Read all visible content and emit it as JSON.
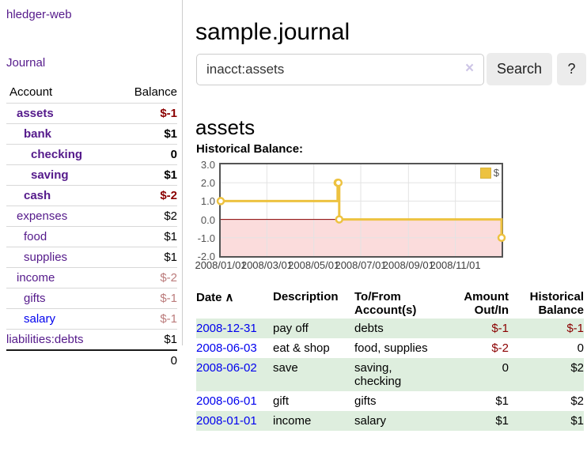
{
  "colors": {
    "accent_purple": "#551a8b",
    "link_blue": "#0000ee",
    "neg_strong": "#8b0000",
    "neg_soft": "#bb7b7b",
    "row_green": "#deeede",
    "series_gold": "#edc240"
  },
  "sidebar": {
    "brand": "hledger-web",
    "journal_link": "Journal",
    "accounts": {
      "header_account": "Account",
      "header_balance": "Balance",
      "rows": [
        {
          "name": "assets",
          "balance": "$-1"
        },
        {
          "name": "bank",
          "balance": "$1"
        },
        {
          "name": "checking",
          "balance": "0"
        },
        {
          "name": "saving",
          "balance": "$1"
        },
        {
          "name": "cash",
          "balance": "$-2"
        },
        {
          "name": "expenses",
          "balance": "$2"
        },
        {
          "name": "food",
          "balance": "$1"
        },
        {
          "name": "supplies",
          "balance": "$1"
        },
        {
          "name": "income",
          "balance": "$-2"
        },
        {
          "name": "gifts",
          "balance": "$-1"
        },
        {
          "name": "salary",
          "balance": "$-1"
        },
        {
          "name": "liabilities:debts",
          "balance": "$1"
        }
      ],
      "total": "0"
    }
  },
  "main": {
    "title": "sample.journal",
    "search": {
      "value": "inacct:assets",
      "clear_icon": "×",
      "search_button": "Search",
      "help_button": "?"
    },
    "account_heading": "assets",
    "chart_heading": "Historical Balance:"
  },
  "chart_data": {
    "type": "line",
    "title": "Historical Balance:",
    "step": true,
    "series": [
      {
        "name": "$",
        "color": "#edc240",
        "points": [
          [
            "2008-01-01",
            1
          ],
          [
            "2008-06-01",
            2
          ],
          [
            "2008-06-02",
            2
          ],
          [
            "2008-06-03",
            0
          ],
          [
            "2008-12-31",
            -1
          ]
        ]
      }
    ],
    "x_ticks": [
      "2008/01/01",
      "2008/03/01",
      "2008/05/01",
      "2008/07/01",
      "2008/09/01",
      "2008/11/01"
    ],
    "y_ticks": [
      "3.0",
      "2.0",
      "1.0",
      "0.0",
      "-1.0",
      "-2.0"
    ],
    "xlim": [
      "2008-01-01",
      "2008-12-31"
    ],
    "ylim": [
      -2,
      3
    ],
    "grid": true,
    "legend_position": "top-right",
    "negative_region_color": "#fbdcdc",
    "zero_line_color": "#8b0000",
    "grid_color": "#e3e3e3"
  },
  "register": {
    "headers": {
      "date": "Date",
      "sort_icon": "∧",
      "description": "Description",
      "tofrom_l1": "To/From",
      "tofrom_l2": "Account(s)",
      "amount_l1": "Amount",
      "amount_l2": "Out/In",
      "hist_l1": "Historical",
      "hist_l2": "Balance"
    },
    "rows": [
      {
        "date": "2008-12-31",
        "description": "pay off",
        "tofrom": "debts",
        "amount": "$-1",
        "balance": "$-1"
      },
      {
        "date": "2008-06-03",
        "description": "eat & shop",
        "tofrom": "food, supplies",
        "amount": "$-2",
        "balance": "0"
      },
      {
        "date": "2008-06-02",
        "description": "save",
        "tofrom": "saving, checking",
        "amount": "0",
        "balance": "$2"
      },
      {
        "date": "2008-06-01",
        "description": "gift",
        "tofrom": "gifts",
        "amount": "$1",
        "balance": "$2"
      },
      {
        "date": "2008-01-01",
        "description": "income",
        "tofrom": "salary",
        "amount": "$1",
        "balance": "$1"
      }
    ]
  }
}
